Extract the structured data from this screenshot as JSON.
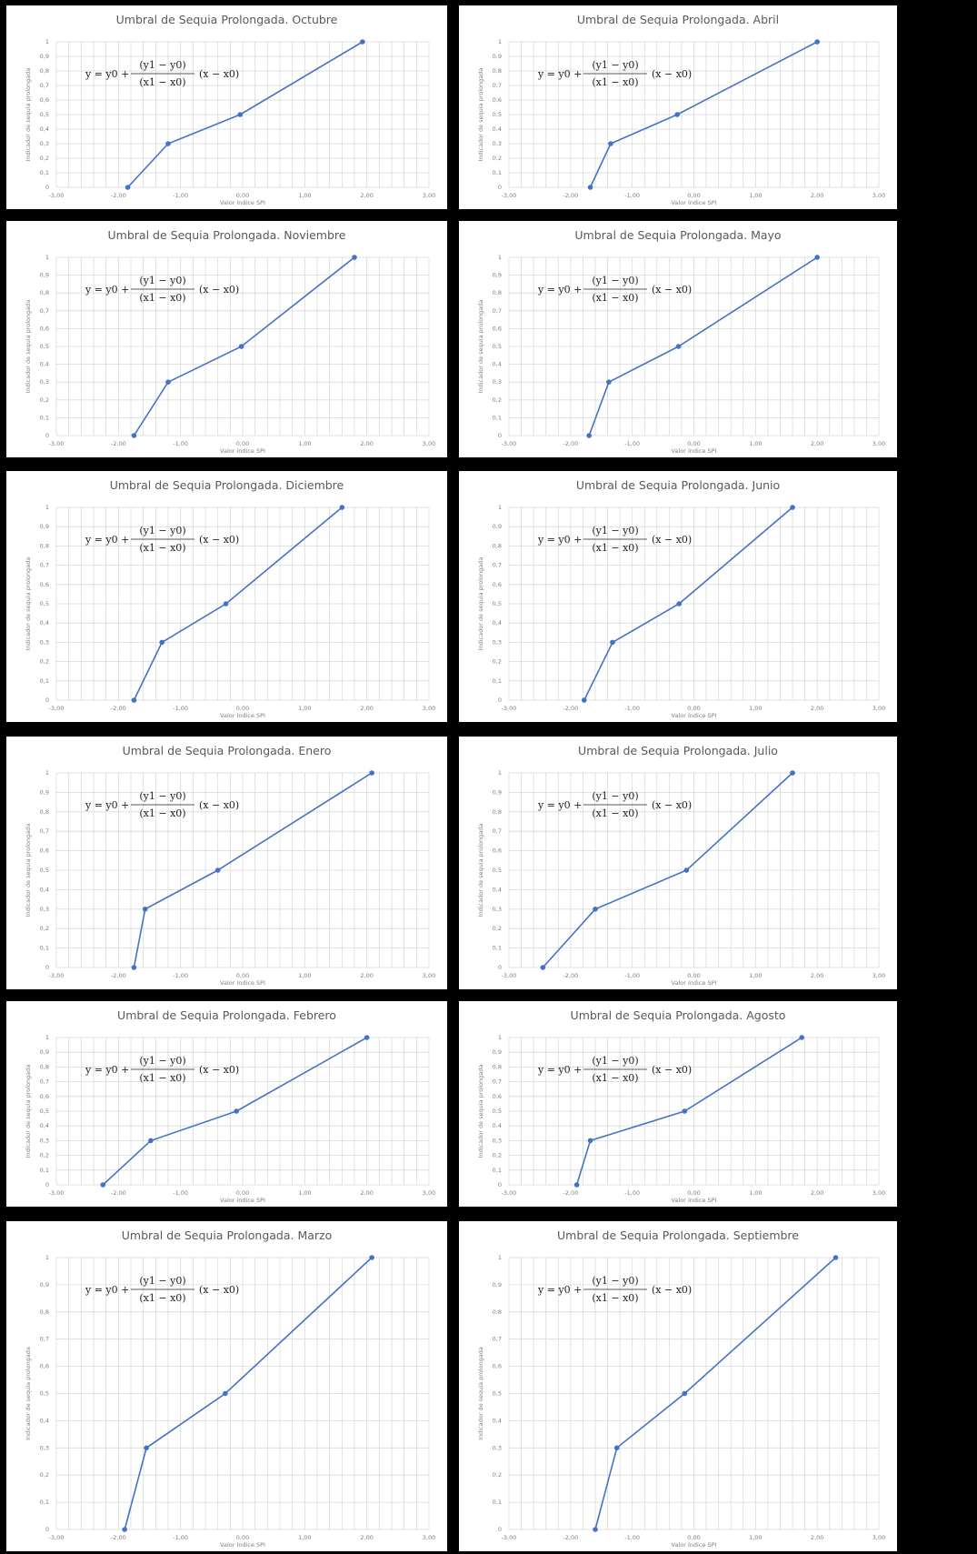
{
  "theme": {
    "series_color": "#4472c4"
  },
  "equation": {
    "lhs": "y = y0 +",
    "numerator": "(y1 − y0)",
    "denominator": "(x1 − x0)",
    "tail": "(x − x0)"
  },
  "chart_data": [
    {
      "type": "line",
      "title": "Umbral de Sequia Prolongada. Octubre",
      "xlabel": "Valor índice SPI",
      "ylabel": "Indicador de sequia prolongada",
      "xlim": [
        -3,
        3
      ],
      "ylim": [
        0,
        1
      ],
      "xticks": [
        "-3,00",
        "-2,00",
        "-1,00",
        "0,00",
        "1,00",
        "2,00",
        "3,00"
      ],
      "yticks": [
        "0",
        "0,1",
        "0,2",
        "0,3",
        "0,4",
        "0,5",
        "0,6",
        "0,7",
        "0,8",
        "0,9",
        "1"
      ],
      "grid": true,
      "x": [
        -1.85,
        -1.2,
        -0.04,
        1.93
      ],
      "y": [
        0,
        0.3,
        0.5,
        1
      ]
    },
    {
      "type": "line",
      "title": "Umbral de Sequia Prolongada. Abril",
      "xlabel": "Valor índice SPI",
      "ylabel": "Indicador de sequia prolongada",
      "xlim": [
        -3,
        3
      ],
      "ylim": [
        0,
        1
      ],
      "xticks": [
        "-3,00",
        "-2,00",
        "-1,00",
        "0,00",
        "1,00",
        "2,00",
        "3,00"
      ],
      "yticks": [
        "0",
        "0,1",
        "0,2",
        "0,3",
        "0,4",
        "0,5",
        "0,6",
        "0,7",
        "0,8",
        "0,9",
        "1"
      ],
      "grid": true,
      "x": [
        -1.68,
        -1.35,
        -0.27,
        2.0
      ],
      "y": [
        0,
        0.3,
        0.5,
        1
      ]
    },
    {
      "type": "line",
      "title": "Umbral de Sequia Prolongada. Noviembre",
      "xlabel": "Valor índice SPI",
      "ylabel": "Indicador de sequia prolongada",
      "xlim": [
        -3,
        3
      ],
      "ylim": [
        0,
        1
      ],
      "xticks": [
        "-3,00",
        "-2,00",
        "-1,00",
        "0,00",
        "1,00",
        "2,00",
        "3,00"
      ],
      "yticks": [
        "0",
        "0,1",
        "0,2",
        "0,3",
        "0,4",
        "0,5",
        "0,6",
        "0,7",
        "0,8",
        "0,9",
        "1"
      ],
      "grid": true,
      "x": [
        -1.75,
        -1.2,
        -0.02,
        1.8
      ],
      "y": [
        0,
        0.3,
        0.5,
        1
      ]
    },
    {
      "type": "line",
      "title": "Umbral de Sequia Prolongada. Mayo",
      "xlabel": "Valor índice SPI",
      "ylabel": "Indicador de sequia prolongada",
      "xlim": [
        -3,
        3
      ],
      "ylim": [
        0,
        1
      ],
      "xticks": [
        "-3,00",
        "-2,00",
        "-1,00",
        "0,00",
        "1,00",
        "2,00",
        "3,00"
      ],
      "yticks": [
        "0",
        "0,1",
        "0,2",
        "0,3",
        "0,4",
        "0,5",
        "0,6",
        "0,7",
        "0,8",
        "0,9",
        "1"
      ],
      "grid": true,
      "x": [
        -1.7,
        -1.38,
        -0.25,
        2.0
      ],
      "y": [
        0,
        0.3,
        0.5,
        1
      ]
    },
    {
      "type": "line",
      "title": "Umbral de Sequia Prolongada. Diciembre",
      "xlabel": "Valor índice SPI",
      "ylabel": "Indicador de sequia prolongada",
      "xlim": [
        -3,
        3
      ],
      "ylim": [
        0,
        1
      ],
      "xticks": [
        "-3,00",
        "-2,00",
        "-1,00",
        "0,00",
        "1,00",
        "2,00",
        "3,00"
      ],
      "yticks": [
        "0",
        "0,1",
        "0,2",
        "0,3",
        "0,4",
        "0,5",
        "0,6",
        "0,7",
        "0,8",
        "0,9",
        "1"
      ],
      "grid": true,
      "x": [
        -1.75,
        -1.3,
        -0.27,
        1.6
      ],
      "y": [
        0,
        0.3,
        0.5,
        1
      ]
    },
    {
      "type": "line",
      "title": "Umbral de Sequia Prolongada. Junio",
      "xlabel": "Valor índice SPI",
      "ylabel": "Indicador de sequia prolongada",
      "xlim": [
        -3,
        3
      ],
      "ylim": [
        0,
        1
      ],
      "xticks": [
        "-3,00",
        "-2,00",
        "-1,00",
        "0,00",
        "1,00",
        "2,00",
        "3,00"
      ],
      "yticks": [
        "0",
        "0,1",
        "0,2",
        "0,3",
        "0,4",
        "0,5",
        "0,6",
        "0,7",
        "0,8",
        "0,9",
        "1"
      ],
      "grid": true,
      "x": [
        -1.78,
        -1.32,
        -0.24,
        1.6
      ],
      "y": [
        0,
        0.3,
        0.5,
        1
      ]
    },
    {
      "type": "line",
      "title": "Umbral de Sequia Prolongada. Enero",
      "xlabel": "Valor índice SPI",
      "ylabel": "Indicador de sequia prolongada",
      "xlim": [
        -3,
        3
      ],
      "ylim": [
        0,
        1
      ],
      "xticks": [
        "-3,00",
        "-2,00",
        "-1,00",
        "0,00",
        "1,00",
        "2,00",
        "3,00"
      ],
      "yticks": [
        "0",
        "0,1",
        "0,2",
        "0,3",
        "0,4",
        "0,5",
        "0,6",
        "0,7",
        "0,8",
        "0,9",
        "1"
      ],
      "grid": true,
      "x": [
        -1.75,
        -1.57,
        -0.4,
        2.08
      ],
      "y": [
        0,
        0.3,
        0.5,
        1
      ]
    },
    {
      "type": "line",
      "title": "Umbral de Sequia Prolongada. Julio",
      "xlabel": "Valor índice SPI",
      "ylabel": "Indicador de sequia prolongada",
      "xlim": [
        -3,
        3
      ],
      "ylim": [
        0,
        1
      ],
      "xticks": [
        "-3,00",
        "-2,00",
        "-1,00",
        "0,00",
        "1,00",
        "2,00",
        "3,00"
      ],
      "yticks": [
        "0",
        "0,1",
        "0,2",
        "0,3",
        "0,4",
        "0,5",
        "0,6",
        "0,7",
        "0,8",
        "0,9",
        "1"
      ],
      "grid": true,
      "x": [
        -2.45,
        -1.6,
        -0.12,
        1.6
      ],
      "y": [
        0,
        0.3,
        0.5,
        1
      ]
    },
    {
      "type": "line",
      "title": "Umbral de Sequia Prolongada. Febrero",
      "xlabel": "Valor índice SPI",
      "ylabel": "Indicador de sequia prolongada",
      "xlim": [
        -3,
        3
      ],
      "ylim": [
        0,
        1
      ],
      "xticks": [
        "-3,00",
        "-2,00",
        "-1,00",
        "0,00",
        "1,00",
        "2,00",
        "3,00"
      ],
      "yticks": [
        "0",
        "0,1",
        "0,2",
        "0,3",
        "0,4",
        "0,5",
        "0,6",
        "0,7",
        "0,8",
        "0,9",
        "1"
      ],
      "grid": true,
      "x": [
        -2.25,
        -1.48,
        -0.1,
        2.0
      ],
      "y": [
        0,
        0.3,
        0.5,
        1
      ]
    },
    {
      "type": "line",
      "title": "Umbral de Sequia Prolongada. Agosto",
      "xlabel": "Valor índice SPI",
      "ylabel": "Indicador de sequia prolongada",
      "xlim": [
        -3,
        3
      ],
      "ylim": [
        0,
        1
      ],
      "xticks": [
        "-3,00",
        "-2,00",
        "-1,00",
        "0,00",
        "1,00",
        "2,00",
        "3,00"
      ],
      "yticks": [
        "0",
        "0,1",
        "0,2",
        "0,3",
        "0,4",
        "0,5",
        "0,6",
        "0,7",
        "0,8",
        "0,9",
        "1"
      ],
      "grid": true,
      "x": [
        -1.9,
        -1.68,
        -0.15,
        1.75
      ],
      "y": [
        0,
        0.3,
        0.5,
        1
      ]
    },
    {
      "type": "line",
      "title": "Umbral de Sequia Prolongada. Marzo",
      "xlabel": "Valor índice SPI",
      "ylabel": "Indicador de sequia prolongada",
      "xlim": [
        -3,
        3
      ],
      "ylim": [
        0,
        1
      ],
      "xticks": [
        "-3,00",
        "-2,00",
        "-1,00",
        "0,00",
        "1,00",
        "2,00",
        "3,00"
      ],
      "yticks": [
        "0",
        "0,1",
        "0,2",
        "0,3",
        "0,4",
        "0,5",
        "0,6",
        "0,7",
        "0,8",
        "0,9",
        "1"
      ],
      "grid": true,
      "x": [
        -1.9,
        -1.55,
        -0.28,
        2.08
      ],
      "y": [
        0,
        0.3,
        0.5,
        1
      ]
    },
    {
      "type": "line",
      "title": "Umbral de Sequia Prolongada. Septiembre",
      "xlabel": "Valor índice SPI",
      "ylabel": "Indicador de sequia prolongada",
      "xlim": [
        -3,
        3
      ],
      "ylim": [
        0,
        1
      ],
      "xticks": [
        "-3,00",
        "-2,00",
        "-1,00",
        "0,00",
        "1,00",
        "2,00",
        "3,00"
      ],
      "yticks": [
        "0",
        "0,1",
        "0,2",
        "0,3",
        "0,4",
        "0,5",
        "0,6",
        "0,7",
        "0,8",
        "0,9",
        "1"
      ],
      "grid": true,
      "x": [
        -1.6,
        -1.25,
        -0.15,
        2.3
      ],
      "y": [
        0,
        0.3,
        0.5,
        1
      ]
    }
  ]
}
